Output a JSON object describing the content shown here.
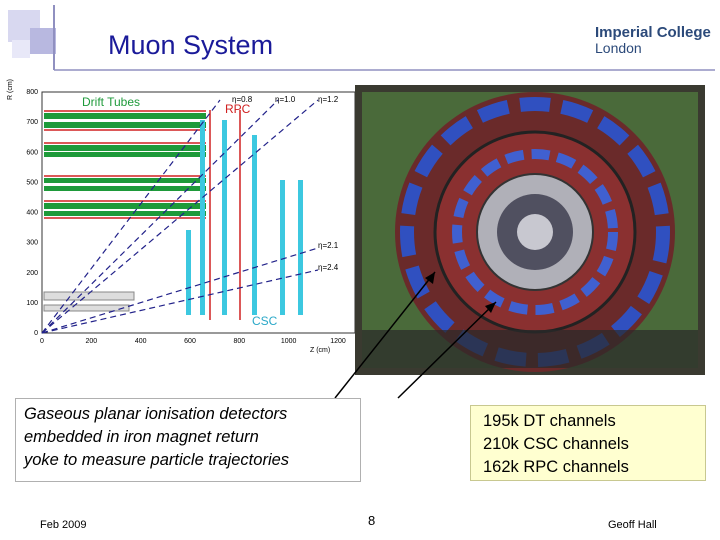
{
  "header": {
    "title": "Muon System",
    "logo": {
      "line1": "Imperial College",
      "line2": "London"
    }
  },
  "figure": {
    "labels": {
      "drift_tubes": "Drift Tubes",
      "rpc": "RPC",
      "csc": "CSC",
      "eta": [
        "η=0.8",
        "η=1.0",
        "η=1.2",
        "η=2.1",
        "η=2.4"
      ]
    },
    "r_axis": {
      "label": "R (cm)",
      "ticks": [
        0,
        100,
        200,
        300,
        400,
        500,
        600,
        700,
        800
      ]
    },
    "z_axis": {
      "label": "Z (cm)",
      "ticks": [
        0,
        200,
        400,
        600,
        800,
        1000,
        1200
      ]
    }
  },
  "text_boxes": [
    {
      "lines": [
        "Gaseous planar ionisation detectors",
        "embedded in iron magnet return",
        "yoke to measure particle trajectories"
      ]
    },
    {
      "lines": [
        "195k DT channels",
        "210k CSC channels",
        "162k RPC channels"
      ]
    }
  ],
  "footer": {
    "date": "Feb 2009",
    "page": "8",
    "author": "Geoff Hall"
  }
}
